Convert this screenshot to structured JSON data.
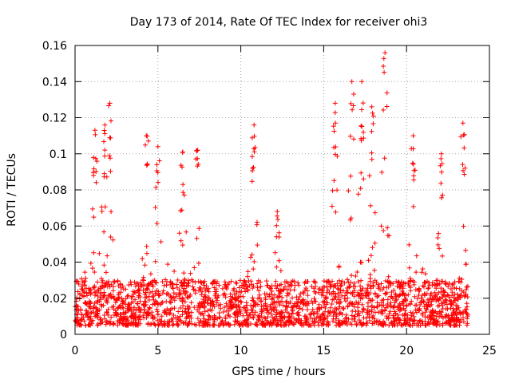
{
  "chart_data": {
    "type": "scatter",
    "title": "Day 173 of 2014, Rate Of TEC Index for receiver ohi3",
    "xlabel": "GPS time / hours",
    "ylabel": "ROTI / TECUs",
    "xlim": [
      0,
      25
    ],
    "ylim": [
      0,
      0.16
    ],
    "x_ticks": [
      "0",
      "5",
      "10",
      "15",
      "20",
      "25"
    ],
    "y_ticks": [
      "0",
      "0.02",
      "0.04",
      "0.06",
      "0.08",
      "0.1",
      "0.12",
      "0.14",
      "0.16"
    ],
    "grid": true,
    "marker": "+",
    "color": "#ff0000",
    "x_range_of_data": [
      0,
      23.7
    ],
    "baseline_range": [
      0.005,
      0.03
    ],
    "peaks": [
      {
        "x": 1.2,
        "y": 0.113
      },
      {
        "x": 1.8,
        "y": 0.116
      },
      {
        "x": 2.1,
        "y": 0.128
      },
      {
        "x": 4.3,
        "y": 0.11
      },
      {
        "x": 5.0,
        "y": 0.104
      },
      {
        "x": 6.5,
        "y": 0.101
      },
      {
        "x": 7.4,
        "y": 0.102
      },
      {
        "x": 10.8,
        "y": 0.116
      },
      {
        "x": 12.2,
        "y": 0.068
      },
      {
        "x": 15.7,
        "y": 0.128
      },
      {
        "x": 16.7,
        "y": 0.14
      },
      {
        "x": 17.3,
        "y": 0.14
      },
      {
        "x": 17.9,
        "y": 0.126
      },
      {
        "x": 18.7,
        "y": 0.156
      },
      {
        "x": 20.4,
        "y": 0.11
      },
      {
        "x": 22.1,
        "y": 0.1
      },
      {
        "x": 23.4,
        "y": 0.117
      }
    ]
  }
}
